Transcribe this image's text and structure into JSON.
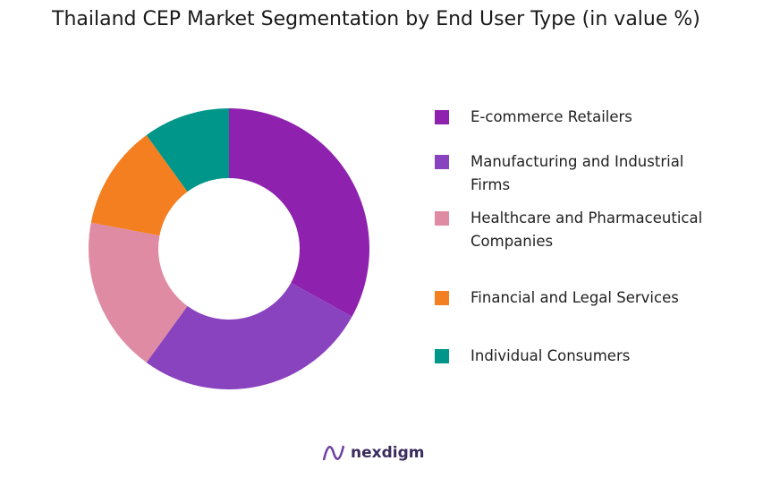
{
  "chart_data": {
    "type": "donut",
    "title": "Thailand CEP Market Segmentation by End User Type (in value %)",
    "categories": [
      "E-commerce Retailers",
      "Manufacturing and Industrial Firms",
      "Healthcare and Pharmaceutical Companies",
      "Financial and Legal Services",
      "Individual Consumers"
    ],
    "values": [
      33,
      27,
      18,
      12,
      10
    ],
    "colors": [
      "#8e22ae",
      "#8a43be",
      "#e08ba4",
      "#f47f20",
      "#00968a"
    ]
  },
  "logo": "nexdigm"
}
